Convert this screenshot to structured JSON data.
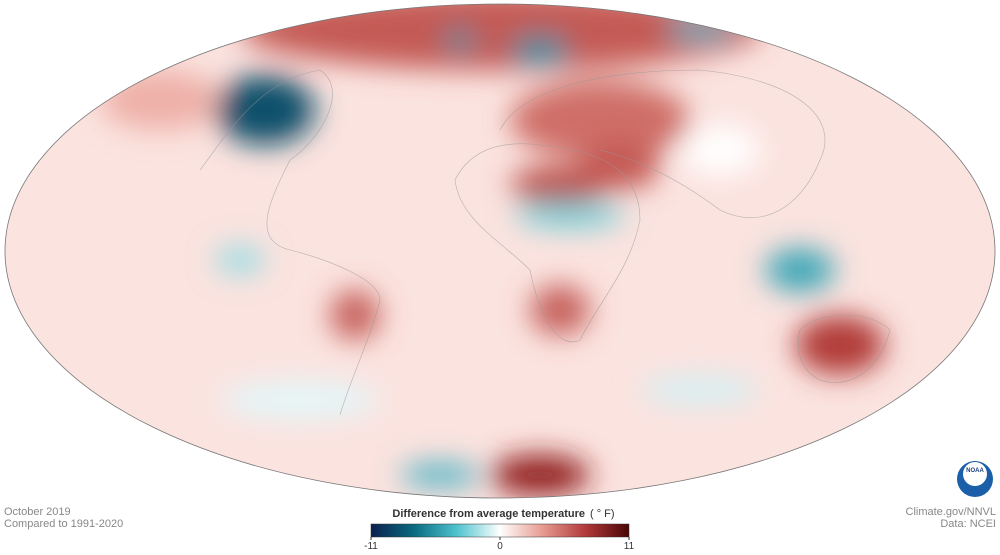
{
  "map": {
    "date": "October 2019",
    "baseline": "Compared to 1991-2020",
    "credit": "Climate.gov/NNVL",
    "source": "Data: NCEI",
    "logo": "NOAA"
  },
  "legend": {
    "title": "Difference from average temperature",
    "unit": "( ° F)",
    "range": [
      -11,
      11
    ],
    "ticks": [
      -11,
      0,
      11
    ],
    "colors": [
      "#0b1f4f",
      "#0a6b80",
      "#4fc3cf",
      "#ffffff",
      "#e79a8f",
      "#b0383a",
      "#4a0606"
    ]
  }
}
